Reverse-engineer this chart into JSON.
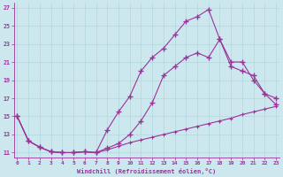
{
  "xlabel": "Windchill (Refroidissement éolien,°C)",
  "xlim": [
    -0.3,
    23.3
  ],
  "ylim": [
    10.5,
    27.5
  ],
  "yticks": [
    11,
    13,
    15,
    17,
    19,
    21,
    23,
    25,
    27
  ],
  "xticks": [
    0,
    1,
    2,
    3,
    4,
    5,
    6,
    7,
    8,
    9,
    10,
    11,
    12,
    13,
    14,
    15,
    16,
    17,
    18,
    19,
    20,
    21,
    22,
    23
  ],
  "bg_color": "#cce8ee",
  "grid_color": "#b0d8dc",
  "line_color": "#993399",
  "line1_x": [
    0,
    1,
    2,
    3,
    4,
    5,
    6,
    7,
    8,
    9,
    10,
    11,
    12,
    13,
    14,
    15,
    16,
    17,
    18,
    19,
    20,
    21,
    22,
    23
  ],
  "line1_y": [
    15.0,
    12.3,
    11.6,
    11.1,
    11.0,
    11.0,
    11.1,
    11.0,
    11.5,
    12.0,
    13.0,
    14.5,
    16.5,
    19.5,
    20.5,
    21.5,
    22.0,
    21.5,
    23.5,
    21.0,
    21.0,
    19.0,
    17.5,
    16.3
  ],
  "line2_x": [
    0,
    1,
    2,
    3,
    4,
    5,
    6,
    7,
    8,
    9,
    10,
    11,
    12,
    13,
    14,
    15,
    16,
    17,
    18,
    19,
    20,
    21,
    22,
    23
  ],
  "line2_y": [
    15.0,
    12.3,
    11.6,
    11.1,
    11.0,
    11.0,
    11.1,
    11.0,
    13.5,
    15.5,
    17.2,
    20.0,
    21.5,
    22.5,
    24.0,
    25.5,
    26.0,
    26.8,
    23.5,
    20.5,
    20.0,
    19.5,
    17.5,
    17.0
  ],
  "line3_x": [
    0,
    1,
    2,
    3,
    4,
    5,
    6,
    7,
    8,
    9,
    10,
    11,
    12,
    13,
    14,
    15,
    16,
    17,
    18,
    19,
    20,
    21,
    22,
    23
  ],
  "line3_y": [
    15.0,
    12.3,
    11.6,
    11.1,
    11.0,
    11.0,
    11.1,
    11.0,
    11.3,
    11.7,
    12.1,
    12.4,
    12.7,
    13.0,
    13.3,
    13.6,
    13.9,
    14.2,
    14.5,
    14.8,
    15.2,
    15.5,
    15.8,
    16.1
  ]
}
